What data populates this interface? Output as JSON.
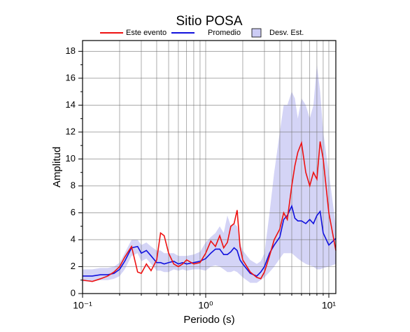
{
  "chart_data": {
    "type": "line",
    "title": "Sitio POSA",
    "x_label": "Periodo (s)",
    "y_label": "Amplitud",
    "log_x": true,
    "grid": true,
    "x": [
      0.1,
      0.12,
      0.14,
      0.16,
      0.18,
      0.2,
      0.22,
      0.25,
      0.28,
      0.3,
      0.33,
      0.36,
      0.4,
      0.43,
      0.46,
      0.5,
      0.55,
      0.6,
      0.65,
      0.7,
      0.8,
      0.9,
      1.0,
      1.1,
      1.2,
      1.3,
      1.4,
      1.5,
      1.6,
      1.7,
      1.8,
      1.9,
      2.0,
      2.3,
      2.6,
      2.8,
      3.0,
      3.3,
      3.6,
      4.0,
      4.3,
      4.6,
      5.0,
      5.3,
      5.6,
      6.0,
      6.5,
      7.0,
      7.5,
      8.0,
      8.5,
      9.0,
      10,
      11.4
    ],
    "series": [
      {
        "name": "Este evento",
        "color": "#ee1111",
        "values": [
          1.0,
          0.9,
          1.1,
          1.3,
          1.6,
          2.0,
          2.7,
          3.5,
          1.6,
          1.5,
          2.2,
          1.7,
          2.5,
          4.5,
          4.3,
          3.0,
          2.2,
          2.0,
          2.2,
          2.5,
          2.2,
          2.3,
          3.0,
          3.9,
          3.5,
          4.3,
          3.4,
          3.8,
          5.0,
          5.2,
          6.2,
          3.5,
          2.5,
          1.6,
          1.2,
          1.1,
          1.6,
          2.8,
          4.0,
          4.8,
          6.0,
          5.5,
          8.0,
          9.5,
          10.5,
          11.2,
          9.0,
          8.0,
          9.0,
          8.5,
          11.3,
          10.0,
          6.0,
          3.2
        ]
      },
      {
        "name": "Promedio",
        "color": "#1111dd",
        "values": [
          1.3,
          1.3,
          1.4,
          1.4,
          1.5,
          1.8,
          2.4,
          3.4,
          3.5,
          3.0,
          3.2,
          2.8,
          2.3,
          2.3,
          2.2,
          2.3,
          2.4,
          2.2,
          2.3,
          2.2,
          2.3,
          2.4,
          2.6,
          3.0,
          3.3,
          3.3,
          2.9,
          2.9,
          3.1,
          3.4,
          3.2,
          2.5,
          2.2,
          1.5,
          1.3,
          1.6,
          2.0,
          3.0,
          3.6,
          4.2,
          5.5,
          5.8,
          6.5,
          5.6,
          5.4,
          5.4,
          5.2,
          5.5,
          5.2,
          5.8,
          6.1,
          4.5,
          3.6,
          4.1
        ]
      }
    ],
    "band": {
      "name": "Desv. Est.",
      "color": "#ccccf5",
      "upper": [
        1.8,
        1.8,
        1.9,
        1.9,
        2.0,
        2.3,
        3.0,
        4.0,
        4.0,
        3.6,
        3.8,
        3.5,
        3.2,
        3.2,
        3.0,
        3.0,
        3.0,
        2.8,
        2.8,
        2.8,
        2.9,
        3.1,
        3.8,
        4.2,
        4.5,
        5.0,
        4.5,
        5.8,
        5.0,
        5.2,
        5.0,
        3.8,
        3.2,
        2.5,
        2.2,
        2.4,
        3.0,
        6.0,
        9.0,
        12.0,
        14.0,
        14.0,
        15.0,
        14.5,
        13.0,
        14.5,
        14.0,
        13.0,
        14.0,
        17.0,
        15.0,
        12.0,
        9.0,
        5.0
      ],
      "lower": [
        0.9,
        0.9,
        1.0,
        1.0,
        1.1,
        1.3,
        1.8,
        2.8,
        3.0,
        2.4,
        2.6,
        2.2,
        1.7,
        1.7,
        1.6,
        1.6,
        1.8,
        1.7,
        1.8,
        1.7,
        1.8,
        1.8,
        1.7,
        2.0,
        2.1,
        2.0,
        1.8,
        1.6,
        1.6,
        1.7,
        1.6,
        1.4,
        1.2,
        0.8,
        0.8,
        1.0,
        1.2,
        1.6,
        2.0,
        2.6,
        3.0,
        3.0,
        3.0,
        2.8,
        2.6,
        2.4,
        2.2,
        2.1,
        2.0,
        1.8,
        1.8,
        1.9,
        2.0,
        2.2
      ]
    },
    "xlim": [
      0.1,
      11.4
    ],
    "ylim": [
      0,
      18.8
    ],
    "xticks": [
      {
        "value": 0.1,
        "label": "10⁻¹"
      },
      {
        "value": 1,
        "label": "10⁰"
      },
      {
        "value": 10,
        "label": "10¹"
      }
    ],
    "xminorticks": [
      0.2,
      0.3,
      0.4,
      0.5,
      0.6,
      0.7,
      0.8,
      0.9,
      2,
      3,
      4,
      5,
      6,
      7,
      8,
      9
    ],
    "yticks": [
      0,
      2,
      4,
      6,
      8,
      10,
      12,
      14,
      16,
      18
    ],
    "yminorticks": [
      1,
      3,
      5,
      7,
      9,
      11,
      13,
      15,
      17
    ]
  }
}
